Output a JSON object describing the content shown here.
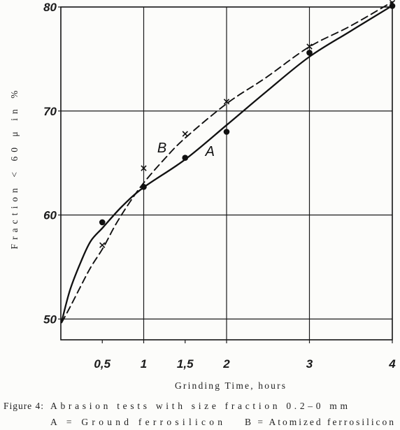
{
  "chart_data": {
    "type": "scatter",
    "xlabel": "Grinding Time, hours",
    "ylabel": "Fraction < 60 μ in %",
    "xlim": [
      0,
      4
    ],
    "ylim": [
      48,
      80
    ],
    "x_ticks": [
      {
        "value": 0.5,
        "label": "0,5"
      },
      {
        "value": 1,
        "label": "1"
      },
      {
        "value": 1.5,
        "label": "1,5"
      },
      {
        "value": 2,
        "label": "2"
      },
      {
        "value": 3,
        "label": "3"
      },
      {
        "value": 4,
        "label": "4"
      }
    ],
    "y_ticks": [
      {
        "value": 50,
        "label": "50"
      },
      {
        "value": 60,
        "label": "60"
      },
      {
        "value": 70,
        "label": "70"
      },
      {
        "value": 80,
        "label": "80"
      }
    ],
    "grid": {
      "x": [
        1,
        2,
        3
      ],
      "y": [
        50,
        60,
        70
      ]
    },
    "series": [
      {
        "name": "A",
        "marker": "dot",
        "line_style": "solid",
        "color": "#111111",
        "points": [
          [
            0.5,
            59.3
          ],
          [
            1,
            62.7
          ],
          [
            1.5,
            65.5
          ],
          [
            2,
            68.0
          ],
          [
            3,
            75.6
          ],
          [
            4,
            80.1
          ]
        ],
        "curve": [
          [
            0.01,
            49.75
          ],
          [
            0.11,
            52.77
          ],
          [
            0.24,
            55.46
          ],
          [
            0.36,
            57.48
          ],
          [
            0.51,
            58.82
          ],
          [
            0.74,
            60.84
          ],
          [
            1.0,
            62.66
          ],
          [
            1.5,
            65.34
          ],
          [
            2.01,
            68.71
          ],
          [
            2.47,
            71.8
          ],
          [
            2.99,
            75.16
          ],
          [
            3.49,
            77.65
          ],
          [
            4.0,
            80.13
          ]
        ],
        "label_at": [
          1.8,
          66.08
        ]
      },
      {
        "name": "B",
        "marker": "cross",
        "line_style": "dashed",
        "color": "#111111",
        "points": [
          [
            0.5,
            57.1
          ],
          [
            1,
            64.5
          ],
          [
            1.5,
            67.8
          ],
          [
            2,
            70.9
          ],
          [
            3,
            76.2
          ],
          [
            4,
            80.4
          ]
        ],
        "curve": [
          [
            0.01,
            49.65
          ],
          [
            0.11,
            51.13
          ],
          [
            0.24,
            53.15
          ],
          [
            0.36,
            54.96
          ],
          [
            0.51,
            56.84
          ],
          [
            0.66,
            59.06
          ],
          [
            0.83,
            61.21
          ],
          [
            1.0,
            63.09
          ],
          [
            1.25,
            65.38
          ],
          [
            1.5,
            67.4
          ],
          [
            2.01,
            70.76
          ],
          [
            2.47,
            73.18
          ],
          [
            2.99,
            76.13
          ],
          [
            3.49,
            78.15
          ],
          [
            4.0,
            80.5
          ]
        ],
        "label_at": [
          1.22,
          66.42
        ]
      }
    ]
  },
  "caption": {
    "figure_label": "Figure 4:",
    "title": "Abrasion tests with size fraction 0.2–0 mm",
    "key_a": "A = Ground ferrosilicon",
    "key_b": "B = Atomized ferrosilicon"
  }
}
